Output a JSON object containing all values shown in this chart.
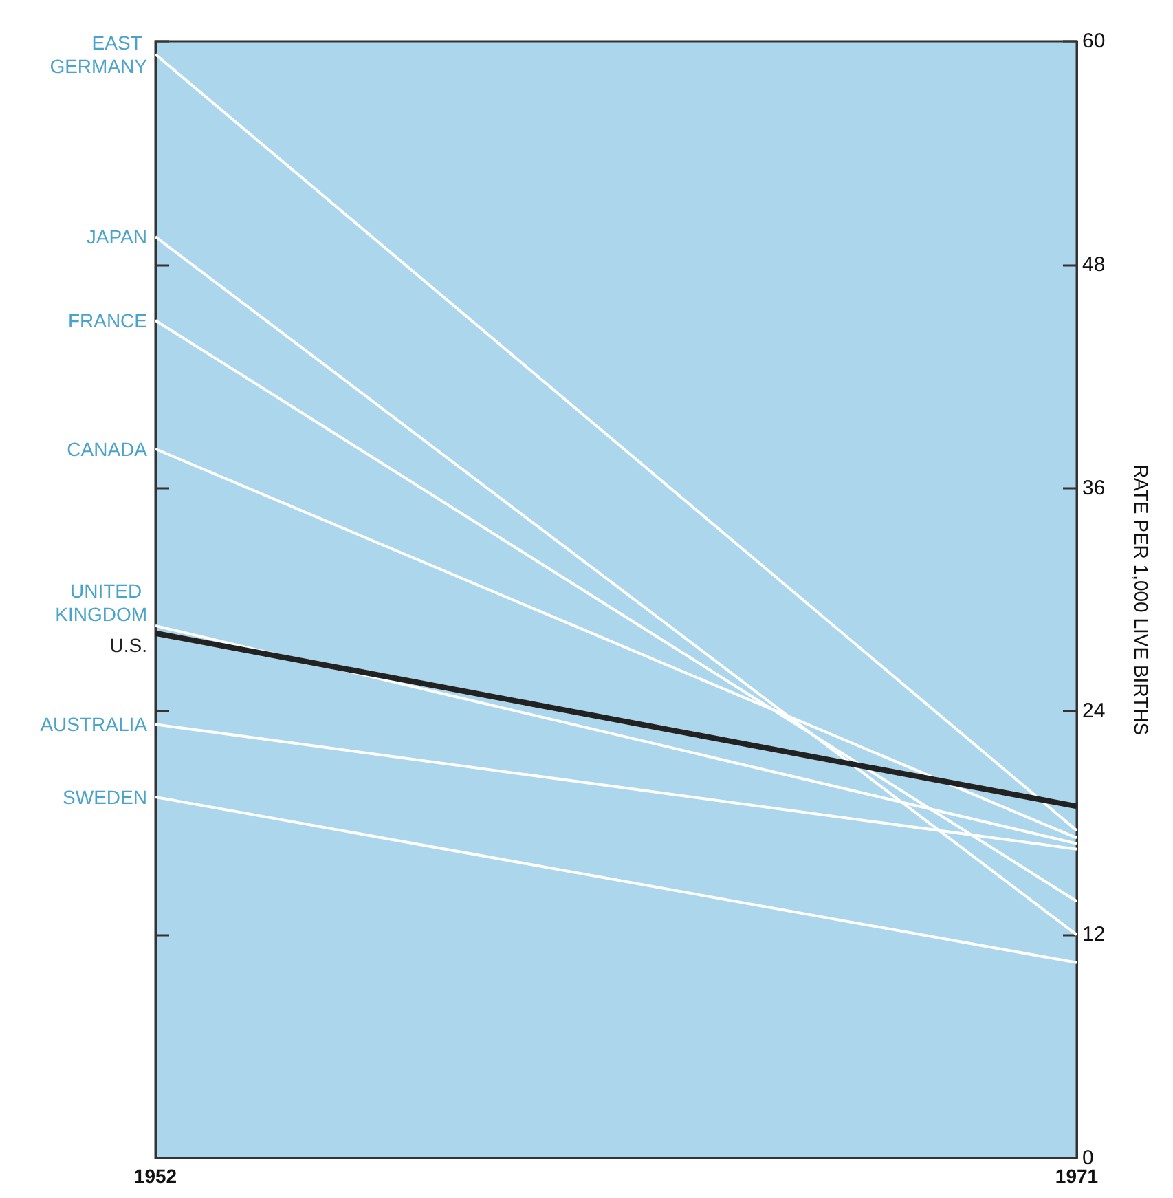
{
  "chart_data": {
    "type": "line",
    "ylabel": "RATE PER 1,000 LIVE BIRTHS",
    "x": [
      1952,
      1971
    ],
    "xlim": [
      1952,
      1971
    ],
    "xticks": [
      1952,
      1971
    ],
    "ylim": [
      0,
      60
    ],
    "yticks": [
      0,
      12,
      24,
      36,
      48,
      60
    ],
    "grid": false,
    "legend": false,
    "marker": "none",
    "line_style": "solid",
    "series": [
      {
        "name": "EAST GERMANY",
        "color": "#ffffff",
        "values": [
          59.3,
          17.6
        ]
      },
      {
        "name": "JAPAN",
        "color": "#ffffff",
        "values": [
          49.5,
          12.0
        ]
      },
      {
        "name": "FRANCE",
        "color": "#ffffff",
        "values": [
          45.0,
          13.8
        ]
      },
      {
        "name": "CANADA",
        "color": "#ffffff",
        "values": [
          38.1,
          17.2
        ]
      },
      {
        "name": "UNITED KINGDOM",
        "color": "#ffffff",
        "values": [
          28.6,
          16.9
        ]
      },
      {
        "name": "U.S.",
        "color": "#222222",
        "values": [
          28.2,
          18.9
        ]
      },
      {
        "name": "AUSTRALIA",
        "color": "#ffffff",
        "values": [
          23.3,
          16.6
        ]
      },
      {
        "name": "SWEDEN",
        "color": "#ffffff",
        "values": [
          19.4,
          10.5
        ]
      }
    ]
  }
}
